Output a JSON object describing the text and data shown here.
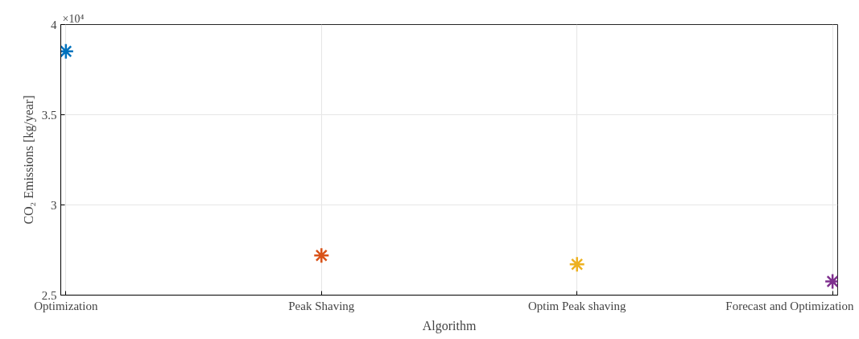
{
  "chart_data": {
    "type": "scatter",
    "xlabel": "Algorithm",
    "ylabel": "CO₂ Emissions [kg/year]",
    "categories": [
      "Optimization",
      "Peak Shaving",
      "Optim Peak shaving",
      "Forecast and Optimization"
    ],
    "values": [
      3.852,
      2.72,
      2.671,
      2.576
    ],
    "colors": [
      "#0072bd",
      "#d95319",
      "#edb120",
      "#7e2f8e"
    ],
    "ylim": [
      2.5,
      4
    ],
    "yticks": [
      2.5,
      3,
      3.5,
      4
    ],
    "annotations": [
      "×10⁴"
    ],
    "grid": true,
    "marker": "cross"
  }
}
